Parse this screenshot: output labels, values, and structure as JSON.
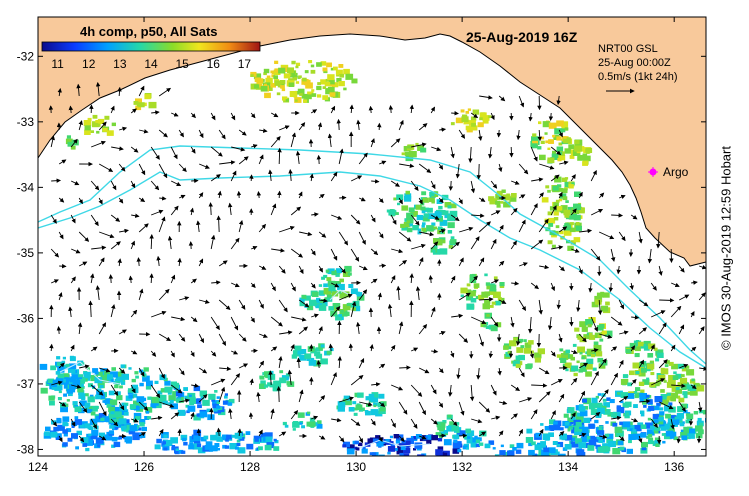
{
  "header": {
    "product_label": "4h comp, p50, All Sats",
    "datetime": "25-Aug-2019 16Z"
  },
  "colorbar": {
    "ticks": [
      "11",
      "12",
      "13",
      "14",
      "15",
      "16",
      "17"
    ],
    "min": 10.5,
    "max": 17.5
  },
  "legend": {
    "line1": "NRT00 GSL",
    "line2": "25-Aug 00:00Z",
    "scale": "0.5m/s (1kt 24h)"
  },
  "argo_label": "Argo",
  "credit": "© IMOS 30-Aug-2019 12:59 Hobart",
  "axes": {
    "x_ticks": [
      "124",
      "126",
      "128",
      "130",
      "132",
      "134",
      "136"
    ],
    "y_ticks": [
      "-32",
      "-33",
      "-34",
      "-35",
      "-36",
      "-37",
      "-38"
    ],
    "lon_range": [
      124,
      136.6
    ],
    "lat_range": [
      -38.1,
      -31.4
    ]
  },
  "colors": {
    "land": "#f8c99b",
    "shelf_contour": "#3fd8e6",
    "argo": "#ff00ff"
  }
}
